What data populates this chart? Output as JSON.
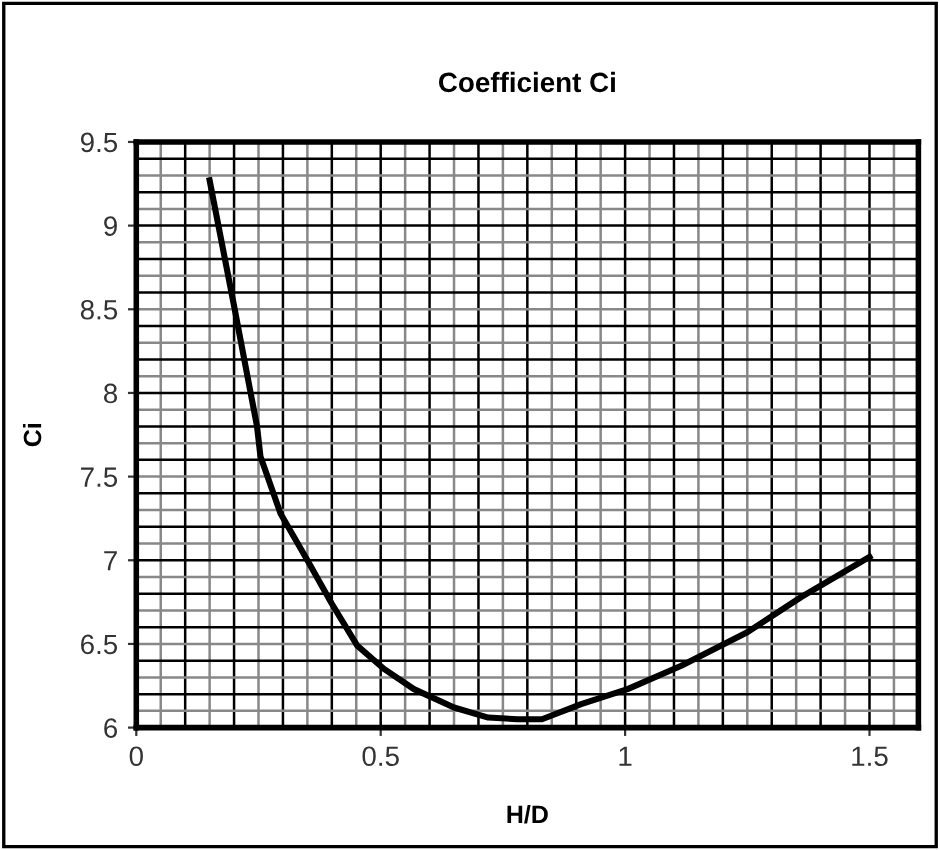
{
  "chart_data": {
    "type": "line",
    "title": "Coefficient Ci",
    "xlabel": "H/D",
    "ylabel": "Ci",
    "x": [
      0.15,
      0.2,
      0.247,
      0.254,
      0.295,
      0.35,
      0.4,
      0.452,
      0.507,
      0.568,
      0.65,
      0.72,
      0.78,
      0.83,
      0.91,
      1.005,
      1.115,
      1.25,
      1.36,
      1.5
    ],
    "series": [
      {
        "color": "#000000",
        "values": [
          9.27,
          8.52,
          7.8,
          7.62,
          7.28,
          7.0,
          6.74,
          6.49,
          6.35,
          6.23,
          6.12,
          6.06,
          6.05,
          6.05,
          6.14,
          6.23,
          6.37,
          6.57,
          6.78,
          7.02
        ]
      }
    ],
    "xlim": [
      0,
      1.6
    ],
    "xticks": [
      0,
      0.5,
      1,
      1.5
    ],
    "ylim": [
      6,
      9.5
    ],
    "yticks": [
      6,
      6.5,
      7,
      7.5,
      8,
      8.5,
      9,
      9.5
    ],
    "grid": true,
    "legend": false,
    "marker": "none",
    "line_style": "solid"
  }
}
